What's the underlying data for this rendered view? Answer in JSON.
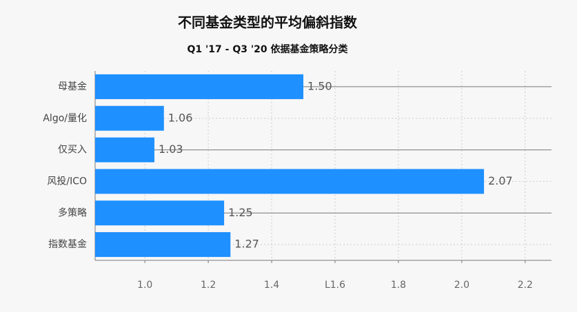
{
  "chart_data": {
    "type": "barh",
    "title": "不同基金类型的平均偏斜指数",
    "subtitle": "Q1 '17 - Q3 '20 依据基金策略分类",
    "categories": [
      "母基金",
      "Algo/量化",
      "仅买入",
      "风投/ICO",
      "多策略",
      "指数基金"
    ],
    "values": [
      1.5,
      1.06,
      1.03,
      2.07,
      1.25,
      1.27
    ],
    "value_labels": [
      "1.50",
      "1.06",
      "1.03",
      "2.07",
      "1.25",
      "1.27"
    ],
    "color": "#1e90ff",
    "xlim": [
      0.843,
      2.283
    ],
    "xticks": [
      {
        "value": 1.0,
        "label": "1.0"
      },
      1.2,
      1.4,
      {
        "value": 1.6,
        "label": "L1.6"
      },
      1.8,
      {
        "value": 2.0,
        "label": "2.0"
      },
      2.2
    ],
    "grid": true
  }
}
